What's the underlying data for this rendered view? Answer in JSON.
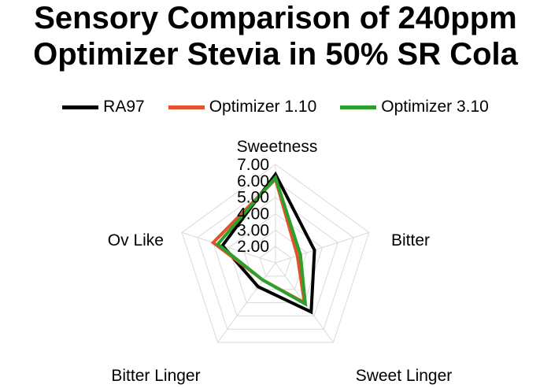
{
  "chart_data": {
    "type": "radar",
    "title_lines": [
      "Sensory Comparison of 240ppm",
      "Optimizer Stevia in 50% SR Cola"
    ],
    "categories": [
      "Sweetness",
      "Bitter",
      "Sweet Linger",
      "Bitter Linger",
      "Ov Like"
    ],
    "rlim": [
      1,
      7
    ],
    "ticks": [
      {
        "value": 2,
        "label": "2.00"
      },
      {
        "value": 3,
        "label": "3.00"
      },
      {
        "value": 4,
        "label": "4.00"
      },
      {
        "value": 5,
        "label": "5.00"
      },
      {
        "value": 6,
        "label": "6.00"
      },
      {
        "value": 7,
        "label": "7.00"
      }
    ],
    "grid": true,
    "legend_position": "top",
    "series": [
      {
        "name": "RA97",
        "color": "#000000",
        "values": [
          6.4,
          3.5,
          4.7,
          2.8,
          4.4
        ]
      },
      {
        "name": "Optimizer 1.10",
        "color": "#E2532B",
        "values": [
          6.1,
          2.4,
          4.0,
          2.3,
          5.0
        ]
      },
      {
        "name": "Optimizer 3.10",
        "color": "#2CA02C",
        "values": [
          6.2,
          2.6,
          4.1,
          2.3,
          4.7
        ]
      }
    ]
  }
}
